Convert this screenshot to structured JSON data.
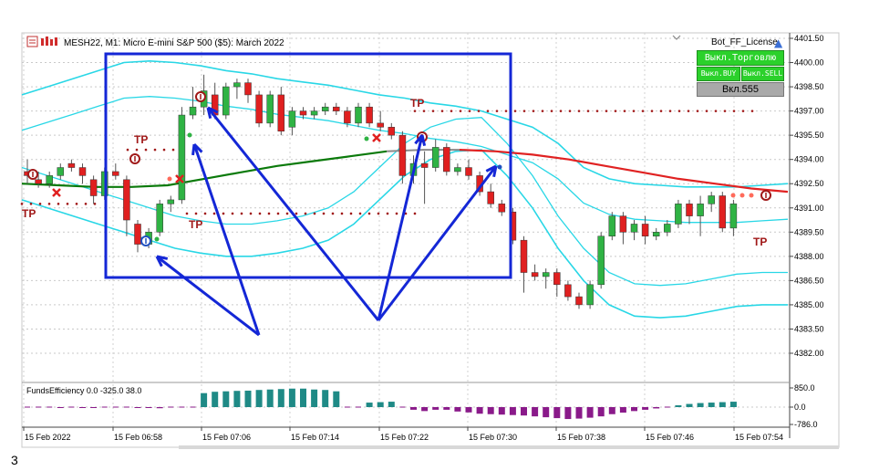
{
  "window": {
    "title": "MESH22, M1:  Micro E-mini S&P 500 ($5): March 2022"
  },
  "panel": {
    "license_label": "Bot_FF_License",
    "trading_toggle": "Выкл.Торговлю",
    "buy_toggle": "Выкл.BUY",
    "sell_toggle": "Выкл.SELL",
    "value_button": "Вкл.555"
  },
  "indicator": {
    "title": "FundsEfficiency 0.0 -325.0 38.0",
    "scale_labels": [
      "850.0",
      "0.0",
      "-786.0"
    ]
  },
  "markers": {
    "tp_label": "TP"
  },
  "footer": {
    "page_number": "3"
  },
  "colors": {
    "bull": "#2fb344",
    "bear": "#e02020",
    "bollinger": "#29d7e6",
    "ma_green": "#0b7a0b",
    "ma_red": "#e02222",
    "ma_gray": "#8a8a8a",
    "annotation_blue": "#1427d6",
    "dotted_red": "#a01818",
    "hist_positive": "#1f8a86",
    "hist_negative": "#8a1a8a"
  },
  "chart_data": {
    "type": "candlestick",
    "symbol": "MESH22",
    "timeframe": "M1",
    "y_ticks": [
      "4401.50",
      "4400.00",
      "4398.50",
      "4397.00",
      "4395.50",
      "4394.00",
      "4392.50",
      "4391.00",
      "4389.50",
      "4388.00",
      "4386.50",
      "4385.00",
      "4383.50",
      "4382.00"
    ],
    "ylim": [
      4381.0,
      4402.0
    ],
    "x_ticks": [
      "15 Feb 2022",
      "15 Feb 06:58",
      "15 Feb 07:06",
      "15 Feb 07:14",
      "15 Feb 07:22",
      "15 Feb 07:30",
      "15 Feb 07:38",
      "15 Feb 07:46",
      "15 Feb 07:54"
    ],
    "candles": [
      {
        "o": 4393.25,
        "h": 4394.0,
        "l": 4392.5,
        "c": 4393.0
      },
      {
        "o": 4392.75,
        "h": 4393.25,
        "l": 4392.25,
        "c": 4392.5
      },
      {
        "o": 4392.5,
        "h": 4393.25,
        "l": 4392.25,
        "c": 4393.0
      },
      {
        "o": 4393.0,
        "h": 4393.75,
        "l": 4392.75,
        "c": 4393.5
      },
      {
        "o": 4393.75,
        "h": 4394.0,
        "l": 4393.25,
        "c": 4393.5
      },
      {
        "o": 4393.5,
        "h": 4393.75,
        "l": 4392.5,
        "c": 4393.0
      },
      {
        "o": 4392.75,
        "h": 4393.0,
        "l": 4391.25,
        "c": 4391.75
      },
      {
        "o": 4391.75,
        "h": 4393.5,
        "l": 4391.5,
        "c": 4393.25
      },
      {
        "o": 4393.25,
        "h": 4393.75,
        "l": 4392.75,
        "c": 4393.0
      },
      {
        "o": 4392.75,
        "h": 4393.0,
        "l": 4389.25,
        "c": 4390.25
      },
      {
        "o": 4390.0,
        "h": 4390.25,
        "l": 4388.25,
        "c": 4388.75
      },
      {
        "o": 4388.75,
        "h": 4389.75,
        "l": 4388.5,
        "c": 4389.5
      },
      {
        "o": 4389.5,
        "h": 4391.5,
        "l": 4389.25,
        "c": 4391.25
      },
      {
        "o": 4391.25,
        "h": 4391.75,
        "l": 4390.75,
        "c": 4391.5
      },
      {
        "o": 4391.5,
        "h": 4397.25,
        "l": 4391.25,
        "c": 4396.75
      },
      {
        "o": 4396.75,
        "h": 4398.5,
        "l": 4396.5,
        "c": 4397.25
      },
      {
        "o": 4397.25,
        "h": 4399.25,
        "l": 4396.75,
        "c": 4398.25
      },
      {
        "o": 4398.0,
        "h": 4398.75,
        "l": 4396.5,
        "c": 4396.75
      },
      {
        "o": 4396.75,
        "h": 4398.75,
        "l": 4396.5,
        "c": 4398.5
      },
      {
        "o": 4398.5,
        "h": 4399.0,
        "l": 4397.75,
        "c": 4398.75
      },
      {
        "o": 4398.75,
        "h": 4399.0,
        "l": 4397.5,
        "c": 4398.0
      },
      {
        "o": 4398.0,
        "h": 4398.25,
        "l": 4396.0,
        "c": 4396.25
      },
      {
        "o": 4396.25,
        "h": 4398.25,
        "l": 4396.0,
        "c": 4398.0
      },
      {
        "o": 4398.0,
        "h": 4398.5,
        "l": 4395.5,
        "c": 4395.75
      },
      {
        "o": 4396.0,
        "h": 4397.25,
        "l": 4395.5,
        "c": 4397.0
      },
      {
        "o": 4397.0,
        "h": 4397.25,
        "l": 4396.5,
        "c": 4396.75
      },
      {
        "o": 4396.75,
        "h": 4397.25,
        "l": 4396.5,
        "c": 4397.0
      },
      {
        "o": 4397.0,
        "h": 4397.5,
        "l": 4396.75,
        "c": 4397.25
      },
      {
        "o": 4397.25,
        "h": 4397.5,
        "l": 4396.75,
        "c": 4397.0
      },
      {
        "o": 4397.0,
        "h": 4397.25,
        "l": 4396.0,
        "c": 4396.25
      },
      {
        "o": 4396.25,
        "h": 4397.5,
        "l": 4396.0,
        "c": 4397.25
      },
      {
        "o": 4397.25,
        "h": 4397.5,
        "l": 4396.0,
        "c": 4396.25
      },
      {
        "o": 4396.25,
        "h": 4397.0,
        "l": 4395.75,
        "c": 4396.0
      },
      {
        "o": 4396.0,
        "h": 4396.25,
        "l": 4395.25,
        "c": 4395.5
      },
      {
        "o": 4395.5,
        "h": 4395.75,
        "l": 4392.5,
        "c": 4393.0
      },
      {
        "o": 4393.0,
        "h": 4394.25,
        "l": 4392.5,
        "c": 4393.75
      },
      {
        "o": 4393.75,
        "h": 4394.5,
        "l": 4391.25,
        "c": 4393.5
      },
      {
        "o": 4393.5,
        "h": 4395.25,
        "l": 4393.25,
        "c": 4394.75
      },
      {
        "o": 4394.75,
        "h": 4395.0,
        "l": 4393.0,
        "c": 4393.25
      },
      {
        "o": 4393.25,
        "h": 4393.75,
        "l": 4393.0,
        "c": 4393.5
      },
      {
        "o": 4393.5,
        "h": 4394.0,
        "l": 4392.75,
        "c": 4393.0
      },
      {
        "o": 4393.0,
        "h": 4393.25,
        "l": 4391.75,
        "c": 4392.0
      },
      {
        "o": 4392.0,
        "h": 4392.5,
        "l": 4391.0,
        "c": 4391.25
      },
      {
        "o": 4391.25,
        "h": 4391.5,
        "l": 4390.5,
        "c": 4390.75
      },
      {
        "o": 4390.75,
        "h": 4391.0,
        "l": 4388.75,
        "c": 4389.0
      },
      {
        "o": 4389.0,
        "h": 4389.25,
        "l": 4385.75,
        "c": 4387.0
      },
      {
        "o": 4387.0,
        "h": 4387.5,
        "l": 4386.5,
        "c": 4386.75
      },
      {
        "o": 4386.75,
        "h": 4387.25,
        "l": 4386.0,
        "c": 4387.0
      },
      {
        "o": 4387.0,
        "h": 4387.25,
        "l": 4385.5,
        "c": 4386.25
      },
      {
        "o": 4386.25,
        "h": 4386.5,
        "l": 4385.25,
        "c": 4385.5
      },
      {
        "o": 4385.5,
        "h": 4385.75,
        "l": 4384.75,
        "c": 4385.0
      },
      {
        "o": 4385.0,
        "h": 4386.5,
        "l": 4384.75,
        "c": 4386.25
      },
      {
        "o": 4386.25,
        "h": 4389.5,
        "l": 4386.0,
        "c": 4389.25
      },
      {
        "o": 4389.25,
        "h": 4390.75,
        "l": 4389.0,
        "c": 4390.5
      },
      {
        "o": 4390.5,
        "h": 4390.75,
        "l": 4388.75,
        "c": 4389.5
      },
      {
        "o": 4389.5,
        "h": 4390.25,
        "l": 4389.0,
        "c": 4390.0
      },
      {
        "o": 4390.0,
        "h": 4390.5,
        "l": 4388.75,
        "c": 4389.25
      },
      {
        "o": 4389.25,
        "h": 4389.75,
        "l": 4389.0,
        "c": 4389.5
      },
      {
        "o": 4389.5,
        "h": 4390.25,
        "l": 4389.25,
        "c": 4390.0
      },
      {
        "o": 4390.0,
        "h": 4391.5,
        "l": 4389.75,
        "c": 4391.25
      },
      {
        "o": 4391.25,
        "h": 4391.5,
        "l": 4390.0,
        "c": 4390.5
      },
      {
        "o": 4390.5,
        "h": 4391.75,
        "l": 4389.25,
        "c": 4391.25
      },
      {
        "o": 4391.25,
        "h": 4392.0,
        "l": 4390.75,
        "c": 4391.75
      },
      {
        "o": 4391.75,
        "h": 4392.0,
        "l": 4389.5,
        "c": 4389.75
      },
      {
        "o": 4389.75,
        "h": 4391.5,
        "l": 4389.25,
        "c": 4391.25
      }
    ],
    "bollinger_upper": [
      4398.0,
      4398.5,
      4399.0,
      4399.5,
      4400.0,
      4400.1,
      4400.0,
      4399.8,
      4399.5,
      4399.3,
      4399.0,
      4398.8,
      4398.6,
      4398.3,
      4398.0,
      4397.8,
      4397.5,
      4397.3,
      4397.0,
      4396.5,
      4396.0,
      4395.0,
      4393.5,
      4392.8,
      4392.5,
      4392.4,
      4392.3,
      4392.3,
      4392.3,
      4392.4,
      4392.5
    ],
    "bollinger_lower": [
      4391.5,
      4391.0,
      4390.5,
      4390.0,
      4389.5,
      4389.0,
      4388.5,
      4388.2,
      4388.0,
      4388.0,
      4388.2,
      4388.5,
      4389.0,
      4390.0,
      4391.5,
      4393.0,
      4394.0,
      4394.5,
      4394.6,
      4393.0,
      4391.0,
      4388.5,
      4386.5,
      4385.0,
      4384.3,
      4384.2,
      4384.3,
      4384.6,
      4384.9,
      4385.0,
      4385.0
    ],
    "moving_average": [
      4392.5,
      4392.4,
      4392.3,
      4392.3,
      4392.4,
      4392.8,
      4393.2,
      4393.6,
      4393.9,
      4394.2,
      4394.5,
      4394.6,
      4394.6,
      4394.5,
      4394.3,
      4394.0,
      4393.6,
      4393.2,
      4392.8,
      4392.5,
      4392.2,
      4392.0
    ],
    "indicator_hist": [
      0,
      0,
      0,
      -30,
      0,
      -40,
      -40,
      0,
      0,
      0,
      -40,
      -40,
      -50,
      0,
      0,
      0,
      620,
      680,
      700,
      720,
      730,
      760,
      780,
      800,
      820,
      820,
      780,
      760,
      700,
      0,
      0,
      200,
      220,
      240,
      0,
      -120,
      -180,
      -120,
      -120,
      -200,
      -240,
      -300,
      -320,
      -340,
      -360,
      -380,
      -420,
      -460,
      -500,
      -540,
      -520,
      -480,
      -420,
      -320,
      -250,
      -180,
      -120,
      -60,
      0,
      80,
      140,
      180,
      200,
      220,
      240
    ]
  }
}
